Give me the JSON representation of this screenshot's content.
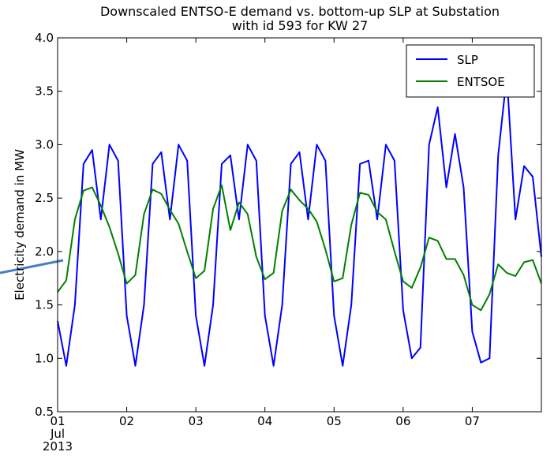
{
  "chart_data": {
    "type": "line",
    "title": "Downscaled ENTSO-E demand vs. bottom-up  SLP at Substation\nwith id 593 for KW 27",
    "y_label": "Electricity demand in MW",
    "x": [
      1,
      1.125,
      1.25,
      1.375,
      1.5,
      1.625,
      1.75,
      1.875,
      2,
      2.125,
      2.25,
      2.375,
      2.5,
      2.625,
      2.75,
      2.875,
      3,
      3.125,
      3.25,
      3.375,
      3.5,
      3.625,
      3.75,
      3.875,
      4,
      4.125,
      4.25,
      4.375,
      4.5,
      4.625,
      4.75,
      4.875,
      5,
      5.125,
      5.25,
      5.375,
      5.5,
      5.625,
      5.75,
      5.875,
      6,
      6.125,
      6.25,
      6.375,
      6.5,
      6.625,
      6.75,
      6.875,
      7,
      7.125,
      7.25,
      7.375,
      7.5,
      7.625,
      7.75,
      7.875,
      8
    ],
    "series": [
      {
        "name": "SLP",
        "color": "#0000ff",
        "values": [
          1.35,
          0.93,
          1.5,
          2.82,
          2.95,
          2.3,
          3.0,
          2.85,
          1.4,
          0.93,
          1.5,
          2.82,
          2.93,
          2.3,
          3.0,
          2.85,
          1.4,
          0.93,
          1.5,
          2.82,
          2.9,
          2.3,
          3.0,
          2.85,
          1.4,
          0.93,
          1.5,
          2.82,
          2.93,
          2.3,
          3.0,
          2.85,
          1.4,
          0.93,
          1.5,
          2.82,
          2.85,
          2.3,
          3.0,
          2.85,
          1.45,
          1.0,
          1.1,
          3.0,
          3.35,
          2.6,
          3.1,
          2.6,
          1.25,
          0.96,
          1.0,
          2.9,
          3.65,
          2.3,
          2.8,
          2.7,
          1.95
        ]
      },
      {
        "name": "ENTSOE",
        "color": "#008000",
        "values": [
          1.62,
          1.73,
          2.3,
          2.57,
          2.6,
          2.43,
          2.23,
          1.98,
          1.7,
          1.78,
          2.35,
          2.58,
          2.54,
          2.39,
          2.26,
          2.0,
          1.75,
          1.82,
          2.4,
          2.62,
          2.2,
          2.46,
          2.35,
          1.95,
          1.74,
          1.8,
          2.38,
          2.58,
          2.48,
          2.4,
          2.28,
          2.02,
          1.72,
          1.75,
          2.25,
          2.55,
          2.53,
          2.37,
          2.3,
          2.0,
          1.72,
          1.66,
          1.85,
          2.13,
          2.1,
          1.93,
          1.93,
          1.78,
          1.5,
          1.45,
          1.6,
          1.88,
          1.8,
          1.77,
          1.9,
          1.92,
          1.7
        ]
      }
    ],
    "xlim": [
      1,
      8
    ],
    "xticks": [
      {
        "value": 1,
        "label": "01\nJul\n2013"
      },
      {
        "value": 2,
        "label": "02"
      },
      {
        "value": 3,
        "label": "03"
      },
      {
        "value": 4,
        "label": "04"
      },
      {
        "value": 5,
        "label": "05"
      },
      {
        "value": 6,
        "label": "06"
      },
      {
        "value": 7,
        "label": "07"
      }
    ],
    "ylim": [
      0.5,
      4.0
    ],
    "yticks": [
      0.5,
      {
        "value": 1,
        "label": "1.0"
      },
      1.5,
      {
        "value": 2,
        "label": "2.0"
      },
      2.5,
      {
        "value": 3,
        "label": "3.0"
      },
      3.5,
      {
        "value": 4,
        "label": "4.0"
      }
    ],
    "grid": false,
    "legend": "upper right"
  }
}
